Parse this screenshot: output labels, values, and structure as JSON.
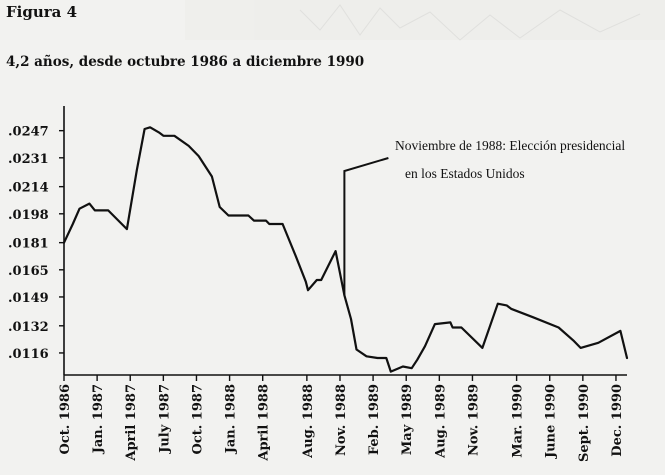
{
  "figure_label": "Figura 4",
  "chart_data": {
    "type": "line",
    "title": "4,2 años, desde octubre 1986 a diciembre 1990",
    "xlabel": "",
    "ylabel": "",
    "y_ticks": [
      ".0247",
      ".0231",
      ".0214",
      ".0198",
      ".0181",
      ".0165",
      ".0149",
      ".0132",
      ".0116"
    ],
    "ylim": [
      0.0103,
      0.0258
    ],
    "x_ticks": [
      {
        "label": "Oct. 1986",
        "x": 0
      },
      {
        "label": "Jan. 1987",
        "x": 3
      },
      {
        "label": "April 1987",
        "x": 6
      },
      {
        "label": "July 1987",
        "x": 9
      },
      {
        "label": "Oct. 1987",
        "x": 12
      },
      {
        "label": "Jan. 1988",
        "x": 15
      },
      {
        "label": "April 1988",
        "x": 18
      },
      {
        "label": "Aug. 1988",
        "x": 22
      },
      {
        "label": "Nov. 1988",
        "x": 25
      },
      {
        "label": "Feb. 1989",
        "x": 28
      },
      {
        "label": "May 1989",
        "x": 31
      },
      {
        "label": "Aug. 1989",
        "x": 34
      },
      {
        "label": "Nov. 1989",
        "x": 37
      },
      {
        "label": "Mar. 1990",
        "x": 41
      },
      {
        "label": "June 1990",
        "x": 44
      },
      {
        "label": "Sept. 1990",
        "x": 47
      },
      {
        "label": "Dec. 1990",
        "x": 50
      }
    ],
    "xlim": [
      0,
      51
    ],
    "series": [
      {
        "points": [
          [
            0,
            0.0181
          ],
          [
            0.8,
            0.0192
          ],
          [
            1.4,
            0.0201
          ],
          [
            2.3,
            0.0204
          ],
          [
            2.8,
            0.02
          ],
          [
            4.0,
            0.02
          ],
          [
            5.7,
            0.0189
          ],
          [
            6.6,
            0.0224
          ],
          [
            7.3,
            0.0248
          ],
          [
            7.8,
            0.0249
          ],
          [
            8.6,
            0.0246
          ],
          [
            9.0,
            0.0244
          ],
          [
            10.0,
            0.0244
          ],
          [
            11.3,
            0.0238
          ],
          [
            12.2,
            0.0232
          ],
          [
            13.4,
            0.022
          ],
          [
            14.1,
            0.0202
          ],
          [
            14.9,
            0.0197
          ],
          [
            16.7,
            0.0197
          ],
          [
            17.2,
            0.0194
          ],
          [
            18.3,
            0.0194
          ],
          [
            18.6,
            0.0192
          ],
          [
            19.8,
            0.0192
          ],
          [
            21.0,
            0.0173
          ],
          [
            21.9,
            0.0158
          ],
          [
            22.1,
            0.0153
          ],
          [
            22.9,
            0.0159
          ],
          [
            23.3,
            0.0159
          ],
          [
            24.6,
            0.0176
          ],
          [
            25.4,
            0.015
          ],
          [
            26.0,
            0.0136
          ],
          [
            26.5,
            0.0118
          ],
          [
            27.4,
            0.0114
          ],
          [
            28.4,
            0.0113
          ],
          [
            29.2,
            0.0113
          ],
          [
            29.6,
            0.0105
          ],
          [
            30.7,
            0.0108
          ],
          [
            31.5,
            0.0107
          ],
          [
            32.0,
            0.0112
          ],
          [
            32.7,
            0.012
          ],
          [
            33.6,
            0.0133
          ],
          [
            35.0,
            0.0134
          ],
          [
            35.2,
            0.0131
          ],
          [
            36.0,
            0.0131
          ],
          [
            37.9,
            0.0119
          ],
          [
            39.3,
            0.0145
          ],
          [
            40.1,
            0.0144
          ],
          [
            40.5,
            0.0142
          ],
          [
            42.5,
            0.0137
          ],
          [
            44.8,
            0.0131
          ],
          [
            46.2,
            0.0123
          ],
          [
            46.8,
            0.0119
          ],
          [
            48.4,
            0.0122
          ],
          [
            50.4,
            0.0129
          ],
          [
            51.0,
            0.0113
          ]
        ]
      }
    ],
    "annotation": {
      "lines": [
        "Noviembre de 1988: Elección presidencial",
        "en los Estados Unidos"
      ],
      "x": 25.4
    },
    "grid": false,
    "legend": "none"
  }
}
